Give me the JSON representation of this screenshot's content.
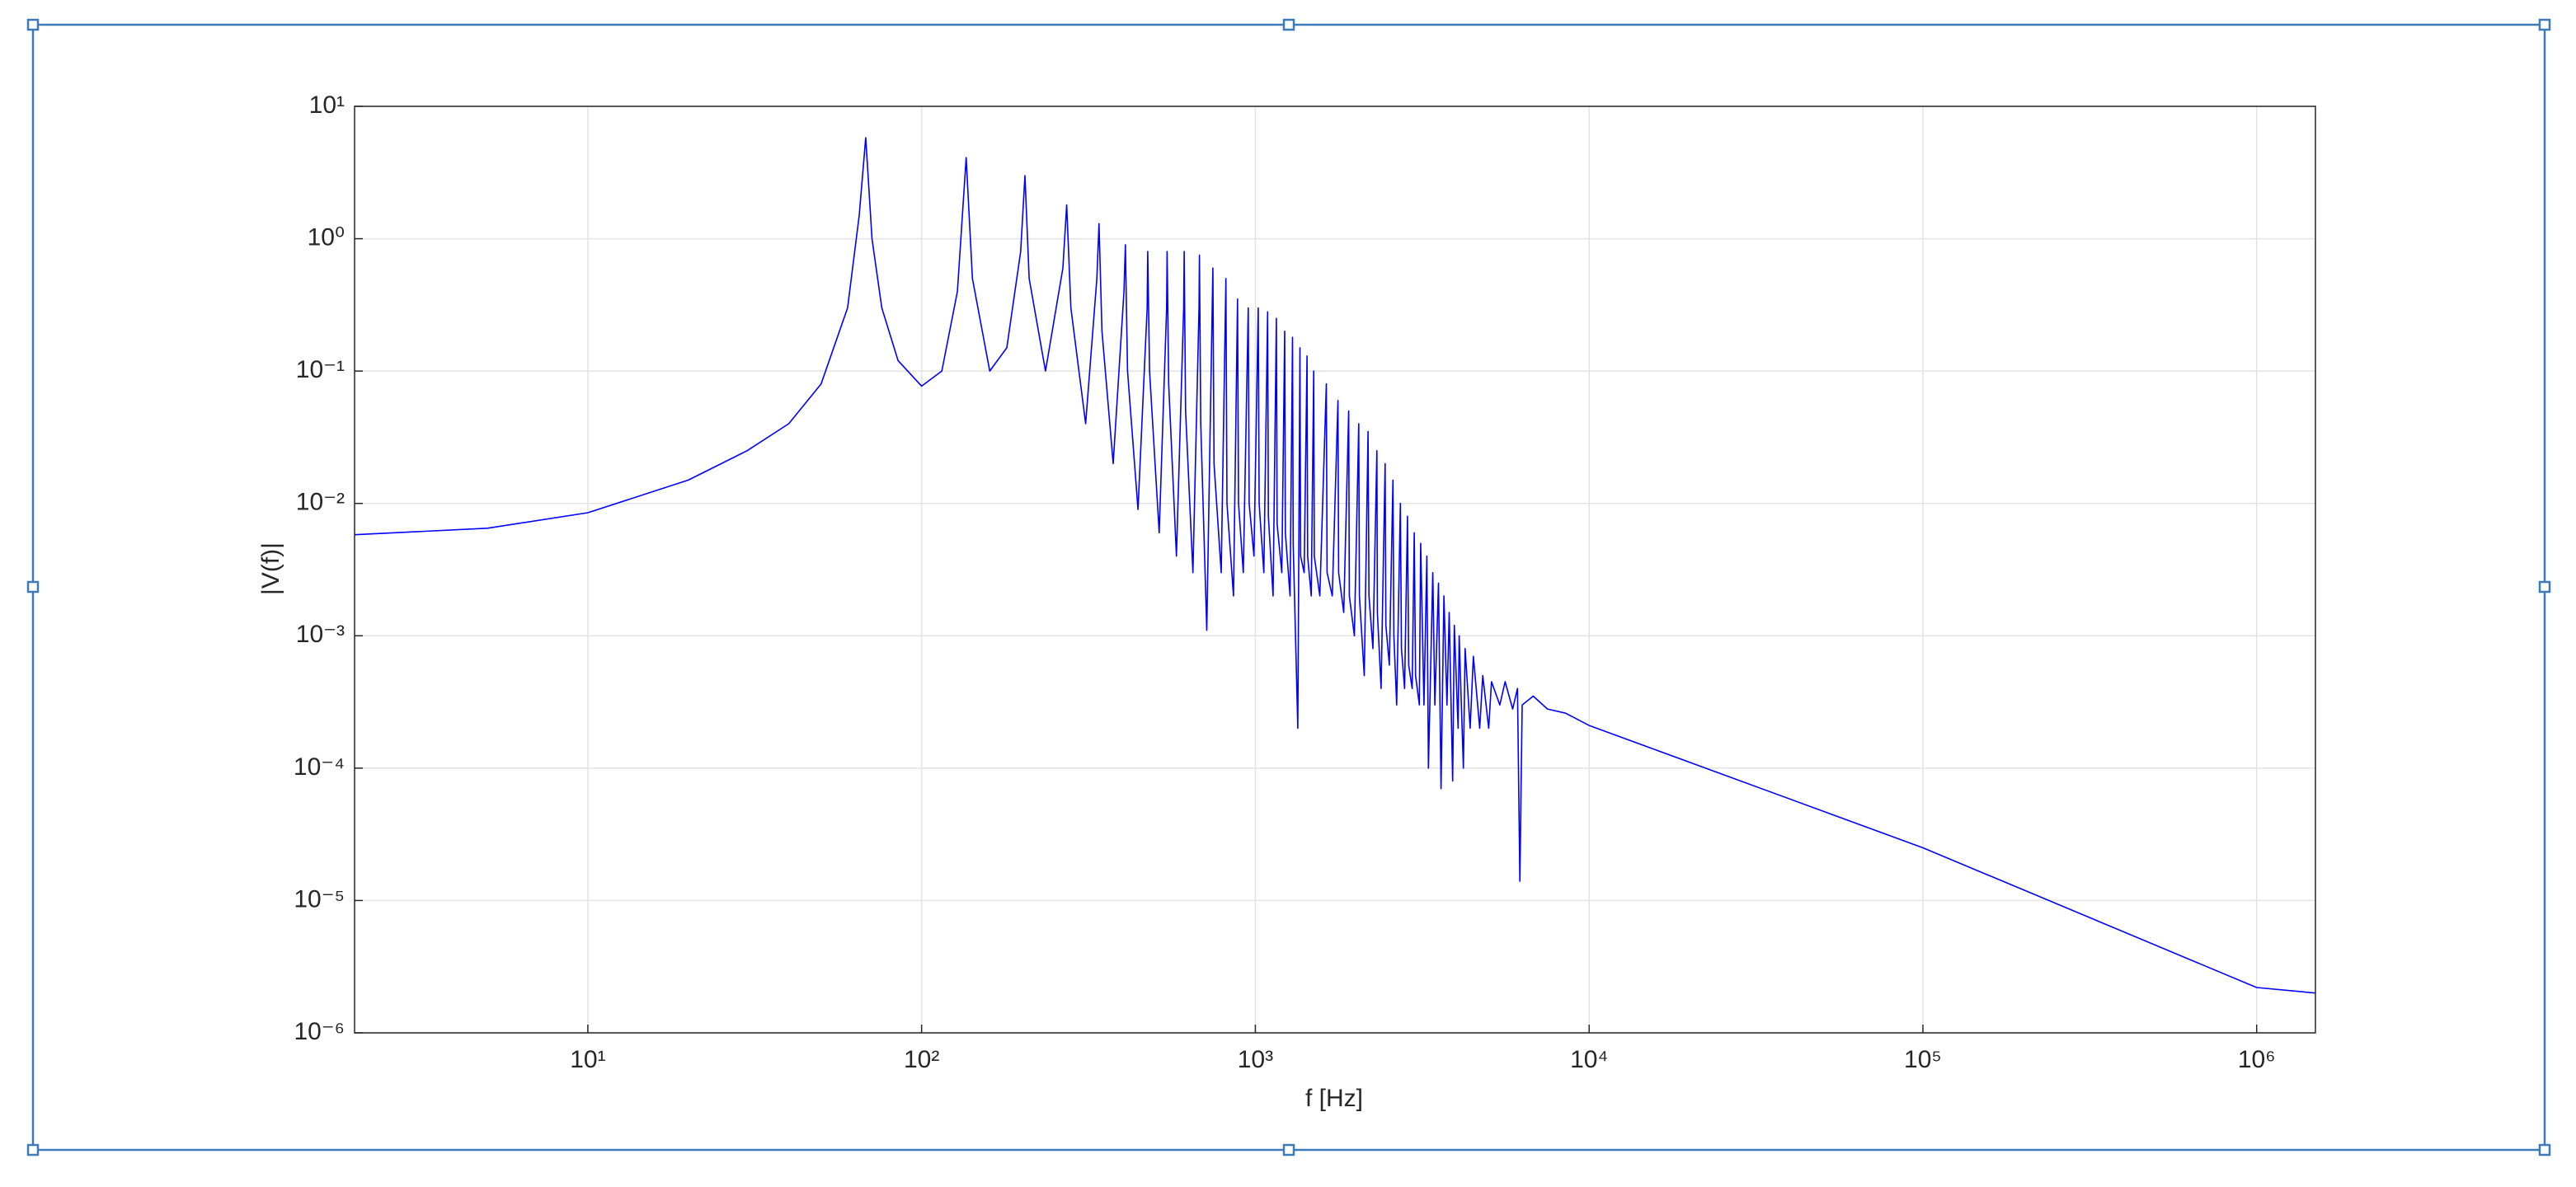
{
  "chart_data": {
    "type": "line",
    "xlabel": "f [Hz]",
    "ylabel": "|V(f)|",
    "xscale": "log",
    "yscale": "log",
    "grid": true,
    "xlim": [
      2,
      1500000
    ],
    "ylim": [
      1e-06,
      10
    ],
    "xticks": [
      {
        "value": 10,
        "label": "10¹"
      },
      {
        "value": 100,
        "label": "10²"
      },
      {
        "value": 1000,
        "label": "10³"
      },
      {
        "value": 10000,
        "label": "10⁴"
      },
      {
        "value": 100000,
        "label": "10⁵"
      },
      {
        "value": 1000000,
        "label": "10⁶"
      }
    ],
    "yticks": [
      {
        "value": 1e-06,
        "label": "10⁻⁶"
      },
      {
        "value": 1e-05,
        "label": "10⁻⁵"
      },
      {
        "value": 0.0001,
        "label": "10⁻⁴"
      },
      {
        "value": 0.001,
        "label": "10⁻³"
      },
      {
        "value": 0.01,
        "label": "10⁻²"
      },
      {
        "value": 0.1,
        "label": "10⁻¹"
      },
      {
        "value": 1,
        "label": "10⁰"
      },
      {
        "value": 10,
        "label": "10¹"
      }
    ],
    "x": [
      2,
      5,
      10,
      20,
      30,
      40,
      50,
      60,
      65,
      68,
      71,
      76,
      85,
      100,
      115,
      128,
      136,
      142,
      160,
      180,
      198,
      204,
      210,
      235,
      265,
      272,
      280,
      310,
      335,
      340,
      347,
      375,
      404,
      408,
      414,
      445,
      474,
      476,
      482,
      515,
      542,
      544,
      550,
      580,
      610,
      612,
      618,
      650,
      678,
      680,
      686,
      715,
      746,
      752,
      790,
      816,
      822,
      860,
      884,
      890,
      920,
      952,
      958,
      990,
      1020,
      1026,
      1060,
      1088,
      1094,
      1130,
      1156,
      1162,
      1200,
      1224,
      1230,
      1270,
      1292,
      1298,
      1340,
      1360,
      1366,
      1400,
      1428,
      1434,
      1470,
      1496,
      1502,
      1560,
      1632,
      1640,
      1700,
      1768,
      1776,
      1840,
      1904,
      1912,
      1980,
      2040,
      2050,
      2120,
      2176,
      2190,
      2250,
      2312,
      2320,
      2380,
      2448,
      2460,
      2520,
      2584,
      2600,
      2650,
      2720,
      2740,
      2800,
      2856,
      2880,
      2950,
      2992,
      3020,
      3100,
      3128,
      3200,
      3264,
      3300,
      3400,
      3450,
      3536,
      3600,
      3672,
      3750,
      3808,
      3900,
      3944,
      4050,
      4080,
      4200,
      4250,
      4400,
      4500,
      4700,
      4800,
      5000,
      5100,
      5400,
      5600,
      5900,
      6100,
      6200,
      6300,
      6800,
      7500,
      8500,
      10000,
      100000,
      1000000,
      1500000
    ],
    "series": [
      {
        "color": "#0000ff",
        "values": [
          0.0058,
          0.0065,
          0.0085,
          0.015,
          0.025,
          0.04,
          0.08,
          0.3,
          1.5,
          5.8,
          1.0,
          0.3,
          0.12,
          0.077,
          0.1,
          0.4,
          4.1,
          0.5,
          0.1,
          0.15,
          0.8,
          3.0,
          0.5,
          0.1,
          0.6,
          1.8,
          0.3,
          0.04,
          0.5,
          1.3,
          0.2,
          0.02,
          0.4,
          0.9,
          0.1,
          0.009,
          0.3,
          0.8,
          0.1,
          0.006,
          0.3,
          0.8,
          0.08,
          0.004,
          0.3,
          0.8,
          0.05,
          0.003,
          0.3,
          0.75,
          0.04,
          0.0011,
          0.6,
          0.02,
          0.003,
          0.5,
          0.01,
          0.002,
          0.35,
          0.01,
          0.003,
          0.3,
          0.01,
          0.004,
          0.3,
          0.01,
          0.003,
          0.28,
          0.008,
          0.002,
          0.25,
          0.007,
          0.003,
          0.2,
          0.006,
          0.002,
          0.18,
          0.005,
          0.0002,
          0.15,
          0.004,
          0.003,
          0.13,
          0.004,
          0.002,
          0.1,
          0.004,
          0.002,
          0.08,
          0.003,
          0.002,
          0.06,
          0.003,
          0.0015,
          0.05,
          0.002,
          0.001,
          0.04,
          0.002,
          0.0005,
          0.035,
          0.002,
          0.0008,
          0.025,
          0.0015,
          0.0004,
          0.02,
          0.0012,
          0.0006,
          0.015,
          0.001,
          0.0003,
          0.01,
          0.0008,
          0.0004,
          0.008,
          0.0006,
          0.0004,
          0.006,
          0.0005,
          0.0003,
          0.005,
          0.0003,
          0.004,
          0.0001,
          0.003,
          0.0003,
          0.0025,
          7e-05,
          0.002,
          0.0003,
          0.0015,
          8e-05,
          0.0012,
          0.0002,
          0.001,
          0.0001,
          0.0008,
          0.0002,
          0.0007,
          0.0002,
          0.0005,
          0.0002,
          0.00045,
          0.0003,
          0.00045,
          0.00028,
          0.0004,
          1.4e-05,
          0.0003,
          0.00035,
          0.00028,
          0.00026,
          0.00021,
          2.5e-05,
          2.2e-06,
          2e-06
        ]
      }
    ]
  }
}
